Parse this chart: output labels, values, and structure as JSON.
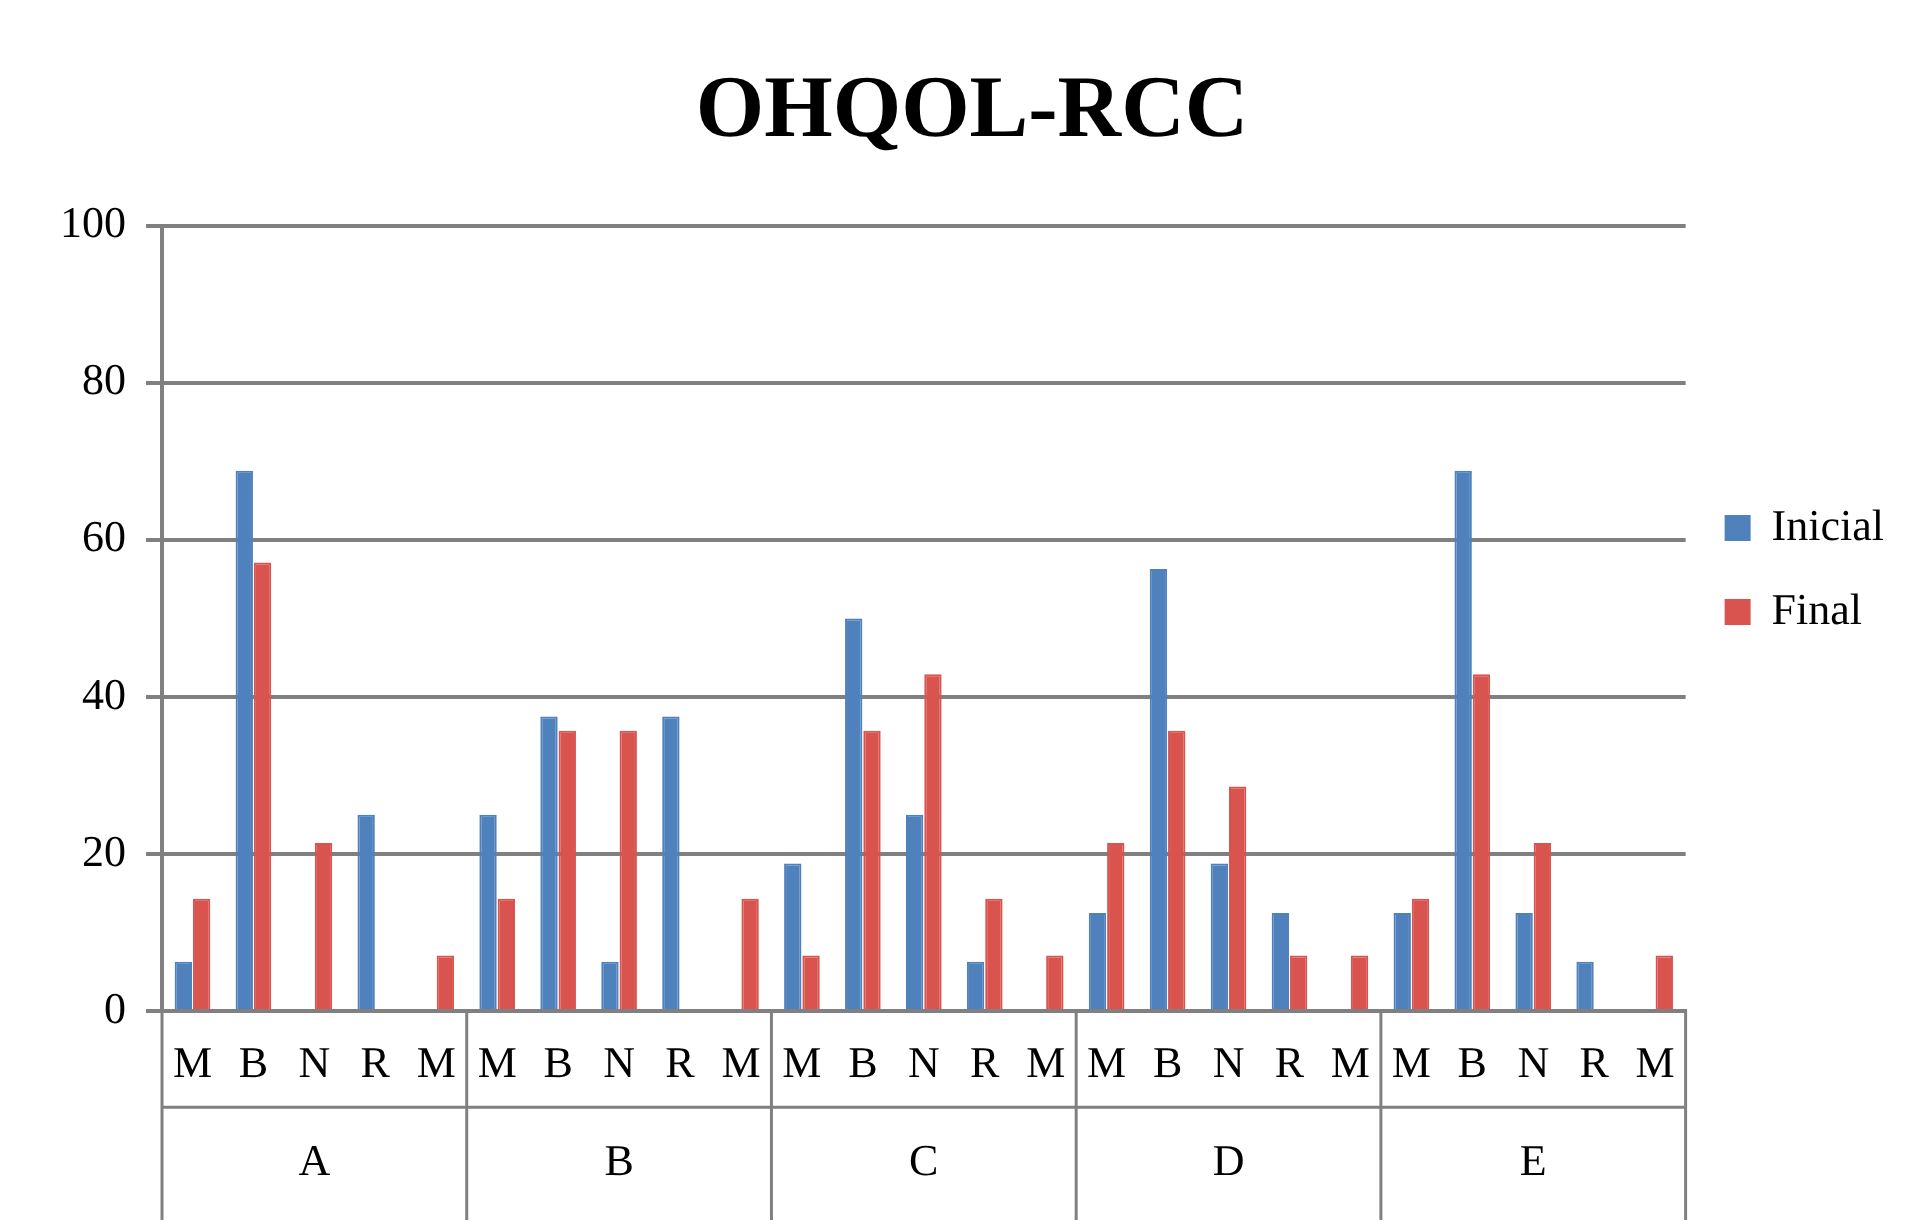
{
  "chart_data": {
    "type": "bar",
    "title": "OHQOL-RCC",
    "categories": [
      "M",
      "B",
      "N",
      "R",
      "M",
      "M",
      "B",
      "N",
      "R",
      "M",
      "M",
      "B",
      "N",
      "R",
      "M",
      "M",
      "B",
      "N",
      "R",
      "M",
      "M",
      "B",
      "N",
      "R",
      "M"
    ],
    "annotations": [
      "A",
      "B",
      "C",
      "D",
      "E"
    ],
    "series": [
      {
        "name": "Inicial",
        "color": "#4f81bd",
        "values": [
          6.3,
          68.8,
          0,
          25,
          0,
          25,
          37.5,
          6.3,
          37.5,
          0,
          18.8,
          50,
          25,
          6.3,
          0,
          12.5,
          56.3,
          18.8,
          12.5,
          0,
          12.5,
          68.8,
          12.5,
          6.3,
          0
        ]
      },
      {
        "name": "Final",
        "color": "#d9534f",
        "values": [
          14.3,
          57.1,
          21.4,
          0,
          7.1,
          14.3,
          35.7,
          35.7,
          0,
          14.3,
          7.1,
          35.7,
          42.9,
          14.3,
          7.1,
          21.4,
          35.7,
          28.6,
          7.1,
          7.1,
          14.3,
          42.9,
          21.4,
          0,
          7.1
        ]
      }
    ],
    "ylim": [
      0,
      100
    ],
    "yticks": [
      0,
      20,
      40,
      60,
      80,
      100
    ],
    "grid": "y",
    "legend": "right"
  }
}
